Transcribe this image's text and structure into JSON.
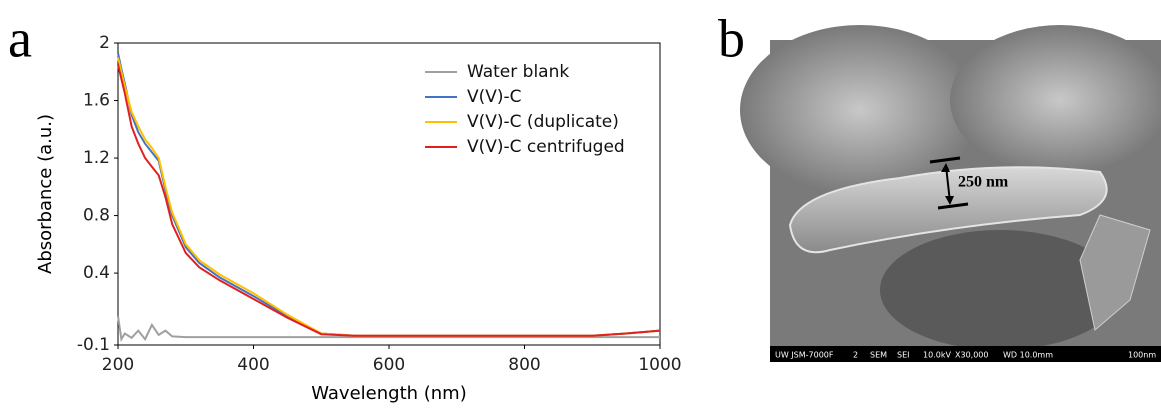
{
  "chart_data": {
    "type": "line",
    "x_label": "Wavelength (nm)",
    "y_label": "Absorbance (a.u.)",
    "x": [
      200,
      205,
      210,
      220,
      230,
      240,
      250,
      260,
      270,
      280,
      300,
      320,
      350,
      400,
      450,
      500,
      550,
      600,
      700,
      800,
      900,
      950,
      1000
    ],
    "series": [
      {
        "name": "Water blank",
        "color": "#a0a0a0",
        "values": [
          0.1,
          -0.06,
          -0.02,
          -0.05,
          0.0,
          -0.06,
          0.04,
          -0.03,
          0.0,
          -0.04,
          -0.045,
          -0.045,
          -0.045,
          -0.045,
          -0.045,
          -0.045,
          -0.045,
          -0.045,
          -0.045,
          -0.045,
          -0.045,
          -0.045,
          -0.045
        ]
      },
      {
        "name": "V(V)-C",
        "color": "#4472c4",
        "values": [
          1.93,
          1.82,
          1.72,
          1.5,
          1.38,
          1.3,
          1.24,
          1.18,
          0.98,
          0.8,
          0.58,
          0.47,
          0.37,
          0.24,
          0.1,
          -0.02,
          -0.035,
          -0.035,
          -0.035,
          -0.035,
          -0.035,
          -0.02,
          0.0
        ]
      },
      {
        "name": "V(V)-C (duplicate)",
        "color": "#ffc000",
        "values": [
          1.9,
          1.8,
          1.7,
          1.52,
          1.42,
          1.33,
          1.27,
          1.2,
          1.0,
          0.82,
          0.6,
          0.49,
          0.39,
          0.26,
          0.11,
          -0.02,
          -0.035,
          -0.035,
          -0.035,
          -0.035,
          -0.035,
          -0.02,
          0.0
        ]
      },
      {
        "name": "V(V)-C centrifuged",
        "color": "#e02020",
        "values": [
          1.85,
          1.75,
          1.65,
          1.42,
          1.3,
          1.2,
          1.14,
          1.08,
          0.93,
          0.74,
          0.54,
          0.44,
          0.35,
          0.22,
          0.09,
          -0.025,
          -0.035,
          -0.035,
          -0.035,
          -0.035,
          -0.035,
          -0.02,
          0.0
        ]
      }
    ],
    "xlim": [
      200,
      1000
    ],
    "xticks": [
      200,
      400,
      600,
      800,
      1000
    ],
    "ylim": [
      -0.1,
      2.0
    ],
    "yticks": [
      -0.1,
      0.4,
      0.8,
      1.2,
      1.6,
      2.0
    ],
    "legend": "top-right"
  },
  "panel_labels": [
    "a",
    "b"
  ],
  "sem_image": {
    "scale_label": "250 nm",
    "info_bar": [
      "UW JSM-7000F",
      "2",
      "SEM",
      "SEI",
      "10.0kV",
      "X30,000",
      "WD 10.0mm",
      "100nm"
    ]
  }
}
